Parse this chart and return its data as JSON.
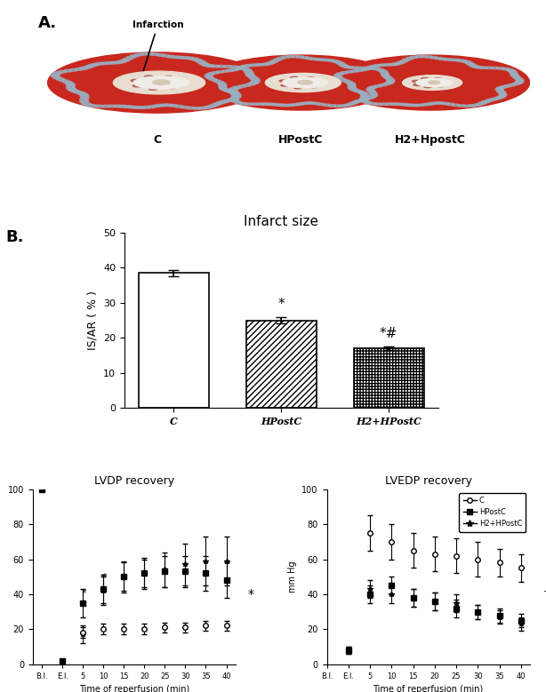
{
  "panel_A_label": "A.",
  "panel_B_label": "B.",
  "bar_title": "Infarct size",
  "bar_categories": [
    "C",
    "HPostC",
    "H2+HPostC"
  ],
  "bar_values": [
    38.5,
    25.0,
    17.0
  ],
  "bar_errors": [
    0.9,
    0.8,
    0.6
  ],
  "bar_ylabel": "IS/AR（%）",
  "bar_ylim": [
    0,
    50
  ],
  "bar_yticks": [
    0,
    10,
    20,
    30,
    40,
    50
  ],
  "bar_annotations": [
    "",
    "*",
    "*#"
  ],
  "lvdp_title": "LVDP recovery",
  "lvedp_title": "LVEDP recovery",
  "lvedp_ylabel": "mm Hg",
  "time_xlabel": "Time of reperfusion (min)",
  "time_points_labels": [
    "B.I.",
    "E.I.",
    "5",
    "10",
    "15",
    "20",
    "25",
    "30",
    "35",
    "40"
  ],
  "lvdp_HPostC": [
    100,
    2,
    35,
    43,
    50,
    52,
    53,
    53,
    52,
    48
  ],
  "lvdp_HPostC_err": [
    0,
    1,
    8,
    8,
    8,
    8,
    9,
    9,
    10,
    10
  ],
  "lvdp_H2HPostC": [
    null,
    null,
    17,
    42,
    50,
    52,
    54,
    57,
    59,
    59
  ],
  "lvdp_H2HPostC_err": [
    null,
    null,
    5,
    8,
    9,
    9,
    10,
    12,
    14,
    14
  ],
  "lvdp_C": [
    null,
    null,
    18,
    20,
    20,
    20,
    21,
    21,
    22,
    22
  ],
  "lvdp_C_err": [
    null,
    null,
    3,
    3,
    3,
    3,
    3,
    3,
    3,
    3
  ],
  "lvedp_C": [
    null,
    null,
    75,
    70,
    65,
    63,
    62,
    60,
    58,
    55
  ],
  "lvedp_C_err": [
    null,
    null,
    10,
    10,
    10,
    10,
    10,
    10,
    8,
    8
  ],
  "lvedp_HPostC": [
    null,
    8,
    40,
    45,
    38,
    36,
    32,
    30,
    28,
    25
  ],
  "lvedp_HPostC_err": [
    null,
    2,
    5,
    5,
    5,
    5,
    5,
    4,
    4,
    4
  ],
  "lvedp_H2HPostC": [
    null,
    8,
    43,
    40,
    38,
    36,
    35,
    30,
    27,
    23
  ],
  "lvedp_H2HPostC_err": [
    null,
    2,
    5,
    5,
    5,
    5,
    5,
    4,
    4,
    4
  ],
  "legend_labels": [
    "C",
    "HPostC",
    "H2+HPostC"
  ]
}
